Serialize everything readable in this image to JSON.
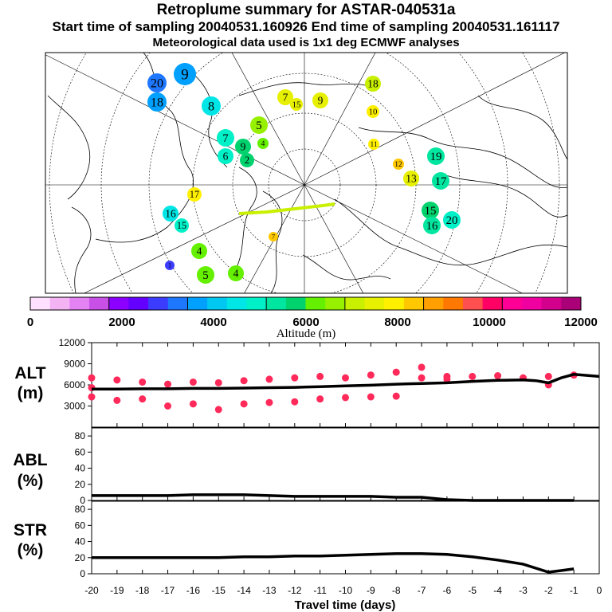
{
  "titles": {
    "main": "Retroplume summary for ASTAR-040531a",
    "sampling": "Start time of sampling 20040531.160926      End time of sampling 20040531.161117",
    "met": "Meteorological data used is 1x1 deg ECMWF analyses"
  },
  "colors": {
    "palette": [
      "#ffe0ff",
      "#f4b4f4",
      "#e482f4",
      "#c850e6",
      "#8c00ff",
      "#6400ff",
      "#3c3cff",
      "#1e78ff",
      "#00a0ff",
      "#00c8f0",
      "#00e6e6",
      "#00f0c8",
      "#00e6a0",
      "#00d26e",
      "#64f000",
      "#96f000",
      "#c8f000",
      "#e6f000",
      "#fff000",
      "#ffc800",
      "#ffa000",
      "#ff7800",
      "#ff5050",
      "#ff0064",
      "#ff0096",
      "#f000a0",
      "#d2008c",
      "#aa0078"
    ],
    "alt_marker": "#ff2a5a",
    "line": "#000000"
  },
  "map_markers": [
    {
      "label": "9",
      "alt": 3600
    },
    {
      "label": "20",
      "alt": 3300
    },
    {
      "label": "18",
      "alt": 3700
    },
    {
      "label": "8",
      "alt": 4400
    },
    {
      "label": "18",
      "alt": 7200
    },
    {
      "label": "10",
      "alt": 7800
    },
    {
      "label": "7",
      "alt": 7400
    },
    {
      "label": "15",
      "alt": 7600
    },
    {
      "label": "9",
      "alt": 7700
    },
    {
      "label": "5",
      "alt": 6800
    },
    {
      "label": "7",
      "alt": 4800
    },
    {
      "label": "6",
      "alt": 5000
    },
    {
      "label": "9",
      "alt": 5600
    },
    {
      "label": "4",
      "alt": 6000
    },
    {
      "label": "2",
      "alt": 5800
    },
    {
      "label": "11",
      "alt": 7900
    },
    {
      "label": "12",
      "alt": 8200
    },
    {
      "label": "13",
      "alt": 7400
    },
    {
      "label": "19",
      "alt": 5200
    },
    {
      "label": "17",
      "alt": 5400
    },
    {
      "label": "15",
      "alt": 5600
    },
    {
      "label": "16",
      "alt": 5500
    },
    {
      "label": "20",
      "alt": 5000
    },
    {
      "label": "16",
      "alt": 4700
    },
    {
      "label": "15",
      "alt": 4900
    },
    {
      "label": "1",
      "alt": 2600
    },
    {
      "label": "4",
      "alt": 6300
    },
    {
      "label": "5",
      "alt": 6100
    },
    {
      "label": "4",
      "alt": 6400
    },
    {
      "label": "7",
      "alt": 8400
    },
    {
      "label": "17",
      "alt": 7800
    }
  ],
  "colorbar": {
    "ticks": [
      "0",
      "2000",
      "4000",
      "6000",
      "8000",
      "10000",
      "12000"
    ],
    "label": "Altitude (m)"
  },
  "panels": {
    "alt": {
      "label1": "ALT",
      "label2": "(m)"
    },
    "abl": {
      "label1": "ABL",
      "label2": "(%)"
    },
    "str": {
      "label1": "STR",
      "label2": "(%)"
    }
  },
  "chart_data": [
    {
      "type": "line",
      "title": "ALT (m)",
      "ylim": [
        0,
        12000
      ],
      "yticks": [
        "3000",
        "6000",
        "9000",
        "12000"
      ],
      "xlim": [
        -20,
        0
      ],
      "x": [
        -20,
        -19,
        -18,
        -17,
        -16,
        -15,
        -14,
        -13,
        -12,
        -11,
        -10,
        -9,
        -8,
        -7,
        -6,
        -5,
        -4,
        -3,
        -2.5,
        -2,
        -1.5,
        -1,
        0
      ],
      "mean": [
        5400,
        5400,
        5450,
        5450,
        5500,
        5500,
        5550,
        5600,
        5650,
        5750,
        5850,
        5950,
        6100,
        6200,
        6300,
        6500,
        6650,
        6700,
        6600,
        6300,
        7000,
        7500,
        7200
      ],
      "scatter": [
        {
          "x": -20,
          "y": 7000
        },
        {
          "x": -20,
          "y": 5600
        },
        {
          "x": -20,
          "y": 4300
        },
        {
          "x": -19,
          "y": 6700
        },
        {
          "x": -19,
          "y": 3800
        },
        {
          "x": -18,
          "y": 6400
        },
        {
          "x": -18,
          "y": 4000
        },
        {
          "x": -17,
          "y": 6100
        },
        {
          "x": -17,
          "y": 3000
        },
        {
          "x": -16,
          "y": 6400
        },
        {
          "x": -16,
          "y": 3300
        },
        {
          "x": -15,
          "y": 6300
        },
        {
          "x": -15,
          "y": 2500
        },
        {
          "x": -14,
          "y": 6600
        },
        {
          "x": -14,
          "y": 3300
        },
        {
          "x": -13,
          "y": 6800
        },
        {
          "x": -13,
          "y": 3500
        },
        {
          "x": -12,
          "y": 7000
        },
        {
          "x": -12,
          "y": 3600
        },
        {
          "x": -11,
          "y": 7200
        },
        {
          "x": -11,
          "y": 4000
        },
        {
          "x": -10,
          "y": 7000
        },
        {
          "x": -10,
          "y": 4200
        },
        {
          "x": -9,
          "y": 7400
        },
        {
          "x": -9,
          "y": 4300
        },
        {
          "x": -8,
          "y": 7800
        },
        {
          "x": -8,
          "y": 4400
        },
        {
          "x": -7,
          "y": 7000
        },
        {
          "x": -7,
          "y": 8500
        },
        {
          "x": -6,
          "y": 6800
        },
        {
          "x": -6,
          "y": 7200
        },
        {
          "x": -5,
          "y": 7200
        },
        {
          "x": -4,
          "y": 7300
        },
        {
          "x": -3,
          "y": 7000
        },
        {
          "x": -2,
          "y": 7200
        },
        {
          "x": -2,
          "y": 6000
        },
        {
          "x": -1,
          "y": 7400
        }
      ]
    },
    {
      "type": "line",
      "title": "ABL (%)",
      "ylim": [
        0,
        90
      ],
      "yticks": [
        "0",
        "20",
        "40",
        "60",
        "80"
      ],
      "xlim": [
        -20,
        0
      ],
      "x": [
        -20,
        -19,
        -18,
        -17,
        -16,
        -15,
        -14,
        -13,
        -12,
        -11,
        -10,
        -9,
        -8,
        -7,
        -6,
        -5,
        -4,
        -3,
        -2,
        -1
      ],
      "values": [
        6,
        6,
        6,
        6,
        7,
        7,
        7,
        6,
        5,
        5,
        5,
        5,
        4,
        4,
        1,
        0,
        0,
        0,
        0,
        0
      ]
    },
    {
      "type": "line",
      "title": "STR (%)",
      "ylim": [
        0,
        90
      ],
      "yticks": [
        "0",
        "20",
        "40",
        "60",
        "80"
      ],
      "xlim": [
        -20,
        0
      ],
      "xlabel": "Travel time (days)",
      "xticks": [
        "-20",
        "-19",
        "-18",
        "-17",
        "-16",
        "-15",
        "-14",
        "-13",
        "-12",
        "-11",
        "-10",
        "-9",
        "-8",
        "-7",
        "-6",
        "-5",
        "-4",
        "-3",
        "-2",
        "-1",
        "0"
      ],
      "x": [
        -20,
        -19,
        -18,
        -17,
        -16,
        -15,
        -14,
        -13,
        -12,
        -11,
        -10,
        -9,
        -8,
        -7,
        -6,
        -5,
        -4,
        -3,
        -2,
        -1.5,
        -1
      ],
      "values": [
        20,
        20,
        20,
        20,
        20,
        20,
        21,
        21,
        22,
        22,
        23,
        24,
        25,
        25,
        24,
        21,
        17,
        12,
        2,
        4,
        6
      ]
    }
  ]
}
